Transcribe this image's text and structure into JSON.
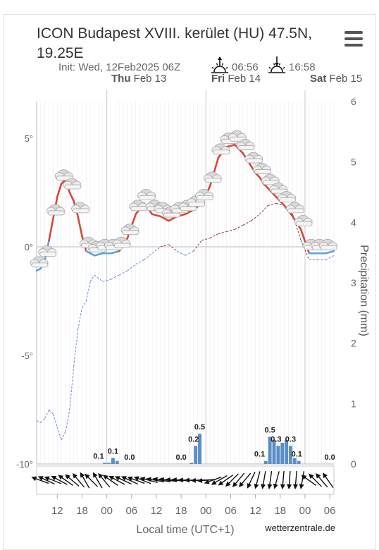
{
  "header": {
    "title": "ICON Budapest XVIII. kerület (HU) 47.5N, 19.25E",
    "init": "Init: Wed, 12Feb2025 06Z",
    "sunrise": "06:56",
    "sunset": "16:58",
    "menu_icon": "hamburger-menu-icon"
  },
  "day_labels": [
    {
      "day": "Thu",
      "date": "Feb 13"
    },
    {
      "day": "Fri",
      "date": "Feb 14"
    },
    {
      "day": "Sat",
      "date": "Feb 15"
    }
  ],
  "footer": {
    "xlabel": "Local time (UTC+1)",
    "credit": "wetterzentrale.de"
  },
  "chart_data": {
    "type": "line",
    "x_unit": "hour since Wed 12 Feb 07:00 local time",
    "x_ticks": [
      "12",
      "18",
      "00",
      "06",
      "12",
      "18",
      "00",
      "06",
      "12",
      "18",
      "00",
      "06"
    ],
    "x_tick_hours": [
      5,
      11,
      17,
      23,
      29,
      35,
      41,
      47,
      53,
      59,
      65,
      71
    ],
    "x_range": [
      0,
      72
    ],
    "left_axis": {
      "label": "",
      "ticks": [
        "5°",
        "0°",
        "-5°",
        "-10°"
      ],
      "tick_values": [
        5,
        0,
        -5,
        -10
      ],
      "ylim": [
        -10,
        6.8
      ]
    },
    "right_axis": {
      "label": "Precipitation (mm)",
      "ticks": [
        "6",
        "5",
        "4",
        "3",
        "2",
        "1",
        "0"
      ],
      "tick_values": [
        6,
        5,
        4,
        3,
        2,
        1,
        0
      ],
      "ylim": [
        0,
        6
      ]
    },
    "grid": true,
    "temperature": {
      "x": [
        0,
        1,
        2,
        3,
        4,
        5,
        6,
        7,
        8,
        9,
        10,
        11,
        12,
        14,
        16,
        18,
        20,
        22,
        24,
        26,
        28,
        30,
        32,
        34,
        36,
        38,
        40,
        42,
        44,
        46,
        48,
        50,
        52,
        53,
        54,
        55,
        56,
        57,
        58,
        60,
        62,
        64,
        66,
        68,
        70,
        72
      ],
      "y": [
        -1.1,
        -1.0,
        -0.6,
        0.3,
        1.3,
        2.3,
        2.9,
        3.1,
        2.5,
        2.1,
        1.4,
        0.5,
        -0.2,
        -0.4,
        -0.3,
        -0.3,
        -0.2,
        0.4,
        1.5,
        2.0,
        1.5,
        1.4,
        1.2,
        1.4,
        1.5,
        1.7,
        2.0,
        2.8,
        4.1,
        4.6,
        4.7,
        4.3,
        3.7,
        3.4,
        3.2,
        2.9,
        2.7,
        2.5,
        2.3,
        1.9,
        1.4,
        0.8,
        -0.3,
        -0.3,
        -0.3,
        -0.2
      ],
      "warm_color": "#d9473a",
      "cold_color": "#5aa4d8"
    },
    "dewpoint": {
      "x": [
        0,
        1,
        2,
        3,
        4,
        5,
        6,
        7,
        8,
        9,
        10,
        11,
        12,
        13,
        14,
        16,
        18,
        20,
        22,
        24,
        26,
        28,
        30,
        32,
        34,
        36,
        38,
        40,
        42,
        44,
        46,
        48,
        50,
        52,
        54,
        56,
        58,
        60,
        62,
        64,
        66,
        68,
        70,
        72
      ],
      "y": [
        -8.0,
        -8.1,
        -7.9,
        -7.5,
        -7.7,
        -8.3,
        -8.9,
        -8.5,
        -7.5,
        -5.5,
        -3.8,
        -2.8,
        -2.5,
        -1.6,
        -1.3,
        -1.6,
        -1.5,
        -1.3,
        -1.1,
        -0.8,
        -0.6,
        -0.3,
        0.0,
        0.1,
        -0.2,
        -0.4,
        -0.2,
        0.3,
        0.4,
        0.6,
        0.7,
        0.8,
        1.0,
        1.2,
        1.5,
        1.9,
        2.0,
        1.9,
        1.5,
        0.3,
        -0.6,
        -0.6,
        -0.6,
        -0.4
      ],
      "color": "#6a8fc0",
      "above_zero_color": "#8a3b3b"
    },
    "precipitation": {
      "hours": [
        16,
        17,
        18,
        19,
        37,
        38,
        39,
        55,
        56,
        57,
        58,
        59,
        60,
        61,
        62,
        63
      ],
      "values": [
        0.02,
        0.02,
        0.1,
        0.05,
        0.02,
        0.3,
        0.5,
        0.05,
        0.45,
        0.4,
        0.3,
        0.35,
        0.4,
        0.3,
        0.1,
        0.05
      ],
      "color": "#5b8ec9",
      "labels": [
        {
          "hour": 15,
          "text": "0.1"
        },
        {
          "hour": 18.5,
          "text": "0.1"
        },
        {
          "hour": 22.5,
          "text": "0.0"
        },
        {
          "hour": 35,
          "text": "0.0"
        },
        {
          "hour": 38,
          "text": "0.2"
        },
        {
          "hour": 39.5,
          "text": "0.5"
        },
        {
          "hour": 54,
          "text": "0.1"
        },
        {
          "hour": 56.5,
          "text": "0.5"
        },
        {
          "hour": 58,
          "text": "0.3"
        },
        {
          "hour": 61.5,
          "text": "0.3"
        },
        {
          "hour": 63,
          "text": "0.1"
        },
        {
          "hour": 71,
          "text": "0.0"
        }
      ]
    },
    "cloud_icon": "cloud-icon",
    "wind_arrow_icon": "wind-arrow-icon",
    "wind_directions_deg": [
      110,
      115,
      112,
      118,
      125,
      130,
      140,
      150,
      135,
      150,
      140,
      125,
      118,
      115,
      115,
      110,
      112,
      105,
      100,
      100,
      98,
      95,
      95,
      92,
      90,
      88,
      85,
      70,
      60,
      55,
      45,
      40,
      40,
      25,
      15,
      10,
      8,
      15,
      5,
      4,
      5,
      10,
      125,
      135,
      140,
      145
    ]
  }
}
